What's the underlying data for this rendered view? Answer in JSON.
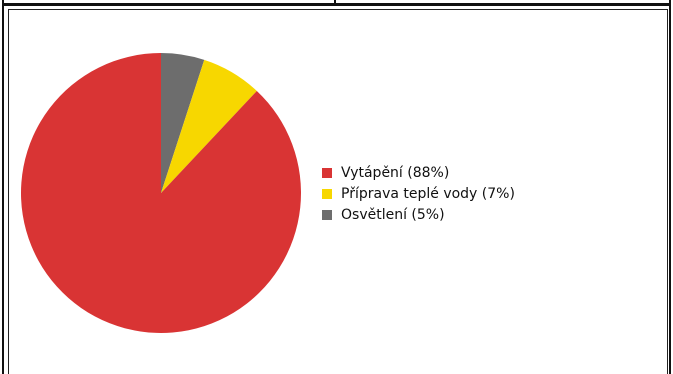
{
  "chart_data": {
    "type": "pie",
    "title": "",
    "slices": [
      {
        "label": "Vytápění (88%)",
        "value": 88,
        "color": "#d93434"
      },
      {
        "label": "Příprava teplé vody (7%)",
        "value": 7,
        "color": "#f7d700"
      },
      {
        "label": "Osvětlení (5%)",
        "value": 5,
        "color": "#6d6d6d"
      }
    ],
    "start_angle": "12 o'clock",
    "direction": "counterclockwise from top for first slice, largest slice on left",
    "legend_position": "right"
  }
}
